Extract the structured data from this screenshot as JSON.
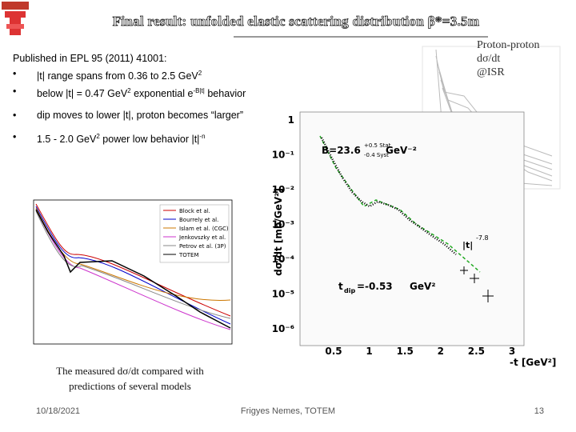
{
  "header": {
    "title": "Final result: unfolded elastic scattering distribution β*=3.5m"
  },
  "summary": {
    "heading": "Published in EPL 95 (2011) 41001:",
    "bullets": [
      [
        {
          "text": "|t| range spans from 0.36 to 2.5 GeV"
        },
        {
          "sup": "2"
        }
      ],
      [
        {
          "text": "below |t| = 0.47 GeV"
        },
        {
          "sup": "2"
        },
        {
          "text": " exponential e"
        },
        {
          "sup": "-B|t|"
        },
        {
          "text": " behavior"
        }
      ],
      [
        {
          "text": "dip moves to lower |t|, proton becomes “larger”"
        }
      ],
      [
        {
          "text": "1.5 - 2.0 GeV"
        },
        {
          "sup": "2"
        },
        {
          "text": " power low behavior |t|"
        },
        {
          "sup": "-n"
        }
      ]
    ]
  },
  "isr_caption": {
    "line1": "Proton-proton",
    "line2": "dσ/dt",
    "line3": "@ISR"
  },
  "model_plot": {
    "legend": [
      "Block et al.",
      "Bourrely et al.",
      "Islam et al. (CGC)",
      "Jenkovszky et al.",
      "Petrov et al. (3P)",
      "TOTEM"
    ],
    "caption_line1": "The measured dσ/dt compared with",
    "caption_line2": "predictions of several models"
  },
  "main_plot": {
    "y_label": "dσ/dt [mb/GeV²]",
    "x_label": "-t [GeV²]",
    "y_ticks": [
      "1",
      "10⁻¹",
      "10⁻²",
      "10⁻³",
      "10⁻⁴",
      "10⁻⁵",
      "10⁻⁶"
    ],
    "x_ticks": [
      "0.5",
      "1",
      "1.5",
      "2",
      "2.5",
      "3"
    ],
    "slope_text": "B=23.6",
    "slope_stat": "+0.5 Stat",
    "slope_syst": "-0.4 Syst",
    "slope_unit": "GeV⁻²",
    "power_text": "|t|",
    "power_exp": "-7.8",
    "dip_text": "t",
    "dip_sub": "dip",
    "dip_value": "=-0.53",
    "dip_unit": "GeV²"
  },
  "footer": {
    "date": "10/18/2021",
    "author": "Frigyes Nemes, TOTEM",
    "page": "13"
  }
}
